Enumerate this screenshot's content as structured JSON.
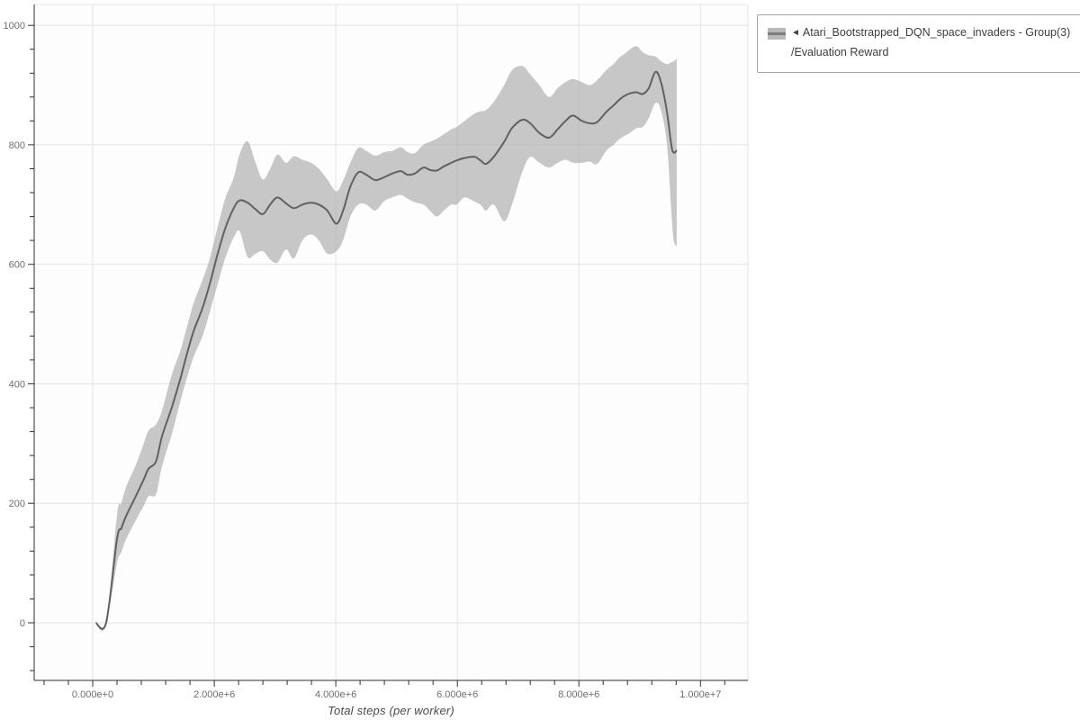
{
  "page": {
    "background": "#ffffff"
  },
  "legend": {
    "collapse_icon": "◄",
    "series": [
      {
        "name_line1": "Atari_Bootstrapped_DQN_space_invaders - Group(3)",
        "name_line2": "/Evaluation Reward"
      }
    ]
  },
  "colors": {
    "plot_bg": "#fdfdfd",
    "grid": "#e4e4e4",
    "axis": "#2f2f2f",
    "tick_label": "#6e6e6e",
    "axis_title": "#4a4a4a",
    "band_fill": "rgba(160,160,160,0.58)",
    "line": "#616161",
    "legend_border": "#a6a6a6",
    "legend_text": "#3d3d3d",
    "swatch_fill": "#b8b8b8",
    "swatch_line": "#7e7e7e"
  },
  "chart_data": {
    "type": "line",
    "title": "",
    "xlabel": "Total steps (per worker)",
    "ylabel": "",
    "grid": true,
    "legend_position": "top-right",
    "xlim": [
      -963000,
      10781000
    ],
    "ylim": [
      -96.4,
      1034.9
    ],
    "x_major_ticks": [
      {
        "value": 0,
        "label": "0.000e+0"
      },
      {
        "value": 2000000,
        "label": "2.000e+6"
      },
      {
        "value": 4000000,
        "label": "4.000e+6"
      },
      {
        "value": 6000000,
        "label": "6.000e+6"
      },
      {
        "value": 8000000,
        "label": "8.000e+6"
      },
      {
        "value": 10000000,
        "label": "1.000e+7"
      }
    ],
    "x_minor_step": 400000,
    "y_major_ticks": [
      {
        "value": 0,
        "label": "0"
      },
      {
        "value": 200,
        "label": "200"
      },
      {
        "value": 400,
        "label": "400"
      },
      {
        "value": 600,
        "label": "600"
      },
      {
        "value": 800,
        "label": "800"
      },
      {
        "value": 1000,
        "label": "1000"
      }
    ],
    "y_minor_step": 40,
    "series": [
      {
        "name": "◄ Atari_Bootstrapped_DQN_space_invaders - Group(3)/Evaluation Reward",
        "steps_e6": [
          0.05,
          0.22,
          0.4,
          0.47,
          0.55,
          0.7,
          0.84,
          0.92,
          1.04,
          1.14,
          1.3,
          1.44,
          1.55,
          1.66,
          1.8,
          1.92,
          2.05,
          2.18,
          2.32,
          2.42,
          2.55,
          2.68,
          2.8,
          2.92,
          3.04,
          3.18,
          3.31,
          3.45,
          3.59,
          3.72,
          3.86,
          4.01,
          4.12,
          4.24,
          4.37,
          4.5,
          4.65,
          4.8,
          4.93,
          5.07,
          5.18,
          5.3,
          5.44,
          5.55,
          5.66,
          5.78,
          5.9,
          5.99,
          6.12,
          6.28,
          6.38,
          6.47,
          6.6,
          6.77,
          6.9,
          7.07,
          7.2,
          7.35,
          7.51,
          7.65,
          7.78,
          7.9,
          8.05,
          8.18,
          8.3,
          8.45,
          8.57,
          8.65,
          8.75,
          8.84,
          8.95,
          9.05,
          9.15,
          9.26,
          9.35,
          9.45,
          9.52,
          9.56,
          9.61
        ],
        "mean": [
          0,
          0,
          140,
          158,
          179,
          210,
          240,
          258,
          270,
          312,
          360,
          408,
          450,
          488,
          525,
          565,
          615,
          660,
          694,
          707,
          703,
          692,
          684,
          700,
          712,
          702,
          694,
          700,
          703,
          700,
          690,
          668,
          690,
          730,
          754,
          750,
          741,
          746,
          752,
          756,
          750,
          752,
          762,
          758,
          757,
          764,
          770,
          774,
          778,
          780,
          774,
          768,
          780,
          805,
          828,
          842,
          836,
          820,
          812,
          826,
          840,
          849,
          840,
          836,
          838,
          855,
          866,
          874,
          882,
          886,
          888,
          885,
          895,
          922,
          905,
          855,
          800,
          787,
          791
        ],
        "lower": [
          0,
          0,
          100,
          118,
          140,
          170,
          196,
          212,
          215,
          262,
          315,
          370,
          410,
          445,
          478,
          518,
          565,
          610,
          645,
          655,
          612,
          618,
          622,
          608,
          603,
          625,
          610,
          640,
          650,
          640,
          618,
          622,
          640,
          680,
          700,
          700,
          690,
          706,
          712,
          716,
          710,
          704,
          700,
          690,
          680,
          690,
          700,
          700,
          712,
          705,
          700,
          690,
          700,
          672,
          700,
          755,
          780,
          770,
          762,
          770,
          775,
          770,
          770,
          772,
          768,
          790,
          800,
          808,
          815,
          820,
          828,
          830,
          845,
          870,
          858,
          800,
          690,
          640,
          631
        ],
        "upper": [
          0,
          0,
          180,
          200,
          228,
          262,
          300,
          322,
          332,
          355,
          415,
          455,
          495,
          535,
          572,
          608,
          660,
          710,
          745,
          785,
          806,
          770,
          742,
          760,
          784,
          770,
          781,
          775,
          770,
          760,
          742,
          722,
          740,
          770,
          795,
          790,
          782,
          788,
          790,
          796,
          788,
          786,
          800,
          805,
          810,
          818,
          826,
          830,
          840,
          852,
          856,
          858,
          872,
          900,
          925,
          932,
          918,
          900,
          880,
          895,
          905,
          910,
          905,
          900,
          908,
          925,
          935,
          945,
          952,
          960,
          965,
          955,
          950,
          948,
          940,
          935,
          938,
          940,
          944
        ]
      }
    ]
  }
}
